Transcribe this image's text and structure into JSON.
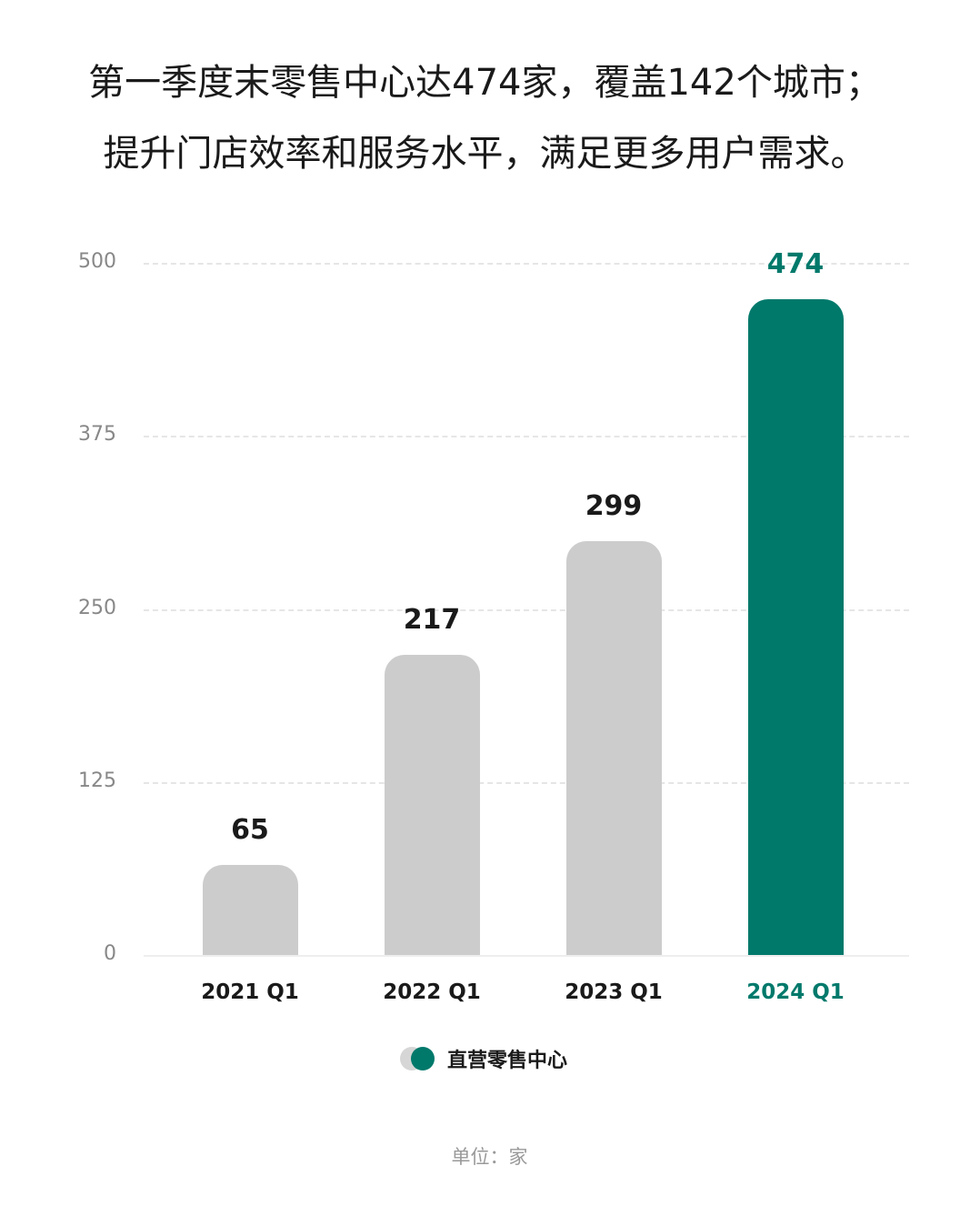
{
  "title": {
    "line1": "第一季度末零售中心达474家，覆盖142个城市；",
    "line2": "提升门店效率和服务水平，满足更多用户需求。"
  },
  "colors": {
    "highlight": "#00796b",
    "default_bar": "#cccccc"
  },
  "legend": {
    "label": "直营零售中心"
  },
  "unit_label": "单位：家",
  "chart_data": {
    "type": "bar",
    "title": "第一季度末零售中心达474家，覆盖142个城市；提升门店效率和服务水平，满足更多用户需求。",
    "categories": [
      "2021 Q1",
      "2022 Q1",
      "2023 Q1",
      "2024 Q1"
    ],
    "series": [
      {
        "name": "直营零售中心",
        "values": [
          65,
          217,
          299,
          474
        ]
      }
    ],
    "values": [
      65,
      217,
      299,
      474
    ],
    "yticks": [
      "0",
      "125",
      "250",
      "375",
      "500"
    ],
    "ylim": [
      0,
      500
    ],
    "xlabel": "",
    "ylabel": "",
    "unit": "单位：家",
    "grid": true,
    "legend_position": "bottom",
    "highlight_index": 3
  }
}
